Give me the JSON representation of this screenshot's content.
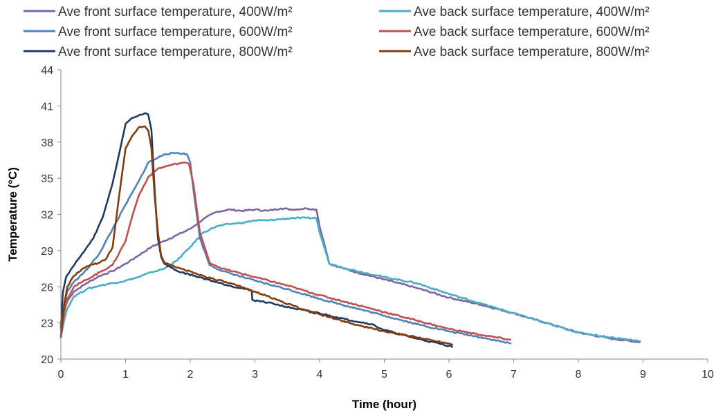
{
  "chart_data": {
    "type": "line",
    "title": "",
    "xlabel": "Time (hour)",
    "ylabel": "Temperature (°C)",
    "xlim": [
      0,
      10
    ],
    "ylim": [
      20,
      44
    ],
    "x_ticks": [
      "0",
      "1",
      "2",
      "3",
      "4",
      "5",
      "6",
      "7",
      "8",
      "9",
      "10"
    ],
    "y_ticks": [
      "20",
      "23",
      "26",
      "29",
      "32",
      "35",
      "38",
      "41",
      "44"
    ],
    "grid": false,
    "legend_position": "top",
    "series": [
      {
        "name": "Ave front surface temperature, 400W/m²",
        "color": "#8064a2",
        "x": [
          0,
          0.05,
          0.1,
          0.2,
          0.4,
          0.6,
          0.8,
          1.0,
          1.2,
          1.4,
          1.6,
          1.8,
          2.0,
          2.2,
          2.4,
          2.6,
          2.8,
          3.0,
          3.2,
          3.4,
          3.6,
          3.8,
          3.95,
          4.0,
          4.1,
          4.15,
          4.5,
          5.0,
          5.5,
          6.0,
          6.5,
          7.0,
          7.5,
          8.0,
          8.5,
          8.95
        ],
        "y": [
          22.5,
          24.0,
          24.8,
          25.6,
          26.3,
          26.9,
          27.3,
          27.9,
          28.6,
          29.3,
          29.8,
          30.3,
          30.8,
          31.6,
          32.2,
          32.4,
          32.3,
          32.4,
          32.3,
          32.5,
          32.4,
          32.5,
          32.4,
          31.0,
          29.0,
          27.9,
          27.3,
          26.6,
          25.9,
          25.1,
          24.5,
          23.8,
          23.0,
          22.2,
          21.7,
          21.4
        ]
      },
      {
        "name": "Ave back surface temperature, 400W/m²",
        "color": "#4bacc6",
        "x": [
          0,
          0.05,
          0.1,
          0.2,
          0.4,
          0.6,
          0.8,
          1.0,
          1.2,
          1.4,
          1.6,
          1.8,
          2.0,
          2.2,
          2.4,
          2.6,
          2.8,
          3.0,
          3.2,
          3.4,
          3.6,
          3.8,
          3.95,
          4.0,
          4.1,
          4.15,
          4.5,
          5.0,
          5.5,
          6.0,
          6.5,
          7.0,
          7.5,
          8.0,
          8.5,
          8.95
        ],
        "y": [
          21.8,
          23.2,
          24.2,
          25.2,
          25.8,
          26.1,
          26.3,
          26.5,
          26.8,
          27.2,
          27.5,
          28.2,
          29.3,
          30.5,
          31.0,
          31.2,
          31.3,
          31.5,
          31.5,
          31.6,
          31.7,
          31.7,
          31.7,
          30.5,
          28.8,
          27.9,
          27.4,
          26.8,
          26.3,
          25.4,
          24.6,
          23.8,
          23.0,
          22.2,
          21.8,
          21.5
        ]
      },
      {
        "name": "Ave front surface temperature, 600W/m²",
        "color": "#4f81bd",
        "x": [
          0,
          0.05,
          0.1,
          0.2,
          0.4,
          0.6,
          0.8,
          1.0,
          1.2,
          1.35,
          1.5,
          1.6,
          1.8,
          1.95,
          2.0,
          2.05,
          2.15,
          2.3,
          2.5,
          3.0,
          3.5,
          4.0,
          4.5,
          5.0,
          5.5,
          6.0,
          6.5,
          6.95
        ],
        "y": [
          22.3,
          24.5,
          25.6,
          26.4,
          27.4,
          28.8,
          30.8,
          32.8,
          34.7,
          36.3,
          36.7,
          37.0,
          37.1,
          37.0,
          36.3,
          34.0,
          30.0,
          27.8,
          27.3,
          26.5,
          25.8,
          25.0,
          24.3,
          23.6,
          22.9,
          22.3,
          21.8,
          21.3
        ]
      },
      {
        "name": "Ave back surface temperature, 600W/m²",
        "color": "#c0504d",
        "x": [
          0,
          0.05,
          0.1,
          0.2,
          0.4,
          0.6,
          0.8,
          1.0,
          1.1,
          1.2,
          1.35,
          1.5,
          1.7,
          1.9,
          1.98,
          2.05,
          2.15,
          2.3,
          2.5,
          3.0,
          3.5,
          4.0,
          4.5,
          5.0,
          5.5,
          6.0,
          6.5,
          6.95
        ],
        "y": [
          21.8,
          23.8,
          25.0,
          26.0,
          26.6,
          27.2,
          27.8,
          29.8,
          31.8,
          33.5,
          35.1,
          35.8,
          36.1,
          36.3,
          36.2,
          34.5,
          30.5,
          28.0,
          27.5,
          26.8,
          26.1,
          25.3,
          24.6,
          23.9,
          23.2,
          22.5,
          22.0,
          21.6
        ]
      },
      {
        "name": "Ave front surface temperature, 800W/m²",
        "color": "#1f3864",
        "x": [
          0,
          0.03,
          0.08,
          0.15,
          0.3,
          0.5,
          0.65,
          0.8,
          0.9,
          1.0,
          1.1,
          1.2,
          1.3,
          1.35,
          1.4,
          1.45,
          1.5,
          1.55,
          1.6,
          1.8,
          2.2,
          2.6,
          2.95,
          2.96,
          3.2,
          3.6,
          4.0,
          4.4,
          4.8,
          5.0,
          5.5,
          6.0,
          6.05
        ],
        "y": [
          22.6,
          25.5,
          26.8,
          27.4,
          28.5,
          30.0,
          31.8,
          34.6,
          37.0,
          39.5,
          40.0,
          40.2,
          40.4,
          40.3,
          39.0,
          34.0,
          30.0,
          28.5,
          27.9,
          27.3,
          26.7,
          26.1,
          25.7,
          24.9,
          24.7,
          24.2,
          23.8,
          23.3,
          22.9,
          22.4,
          21.7,
          21.1,
          21.0
        ]
      },
      {
        "name": "Ave back surface temperature, 800W/m²",
        "color": "#843c0c",
        "x": [
          0,
          0.05,
          0.1,
          0.2,
          0.4,
          0.6,
          0.7,
          0.8,
          0.9,
          1.0,
          1.1,
          1.2,
          1.3,
          1.35,
          1.4,
          1.45,
          1.5,
          1.55,
          1.6,
          1.8,
          2.2,
          2.6,
          3.0,
          3.4,
          3.8,
          4.2,
          4.6,
          5.0,
          5.5,
          6.0,
          6.05
        ],
        "y": [
          21.9,
          24.5,
          26.0,
          26.9,
          27.7,
          28.0,
          28.3,
          29.3,
          33.5,
          37.5,
          38.5,
          39.2,
          39.3,
          39.0,
          37.5,
          33.5,
          30.5,
          28.6,
          28.0,
          27.6,
          26.9,
          26.3,
          25.6,
          24.8,
          24.0,
          23.4,
          22.8,
          22.3,
          21.8,
          21.3,
          21.2
        ]
      }
    ]
  }
}
